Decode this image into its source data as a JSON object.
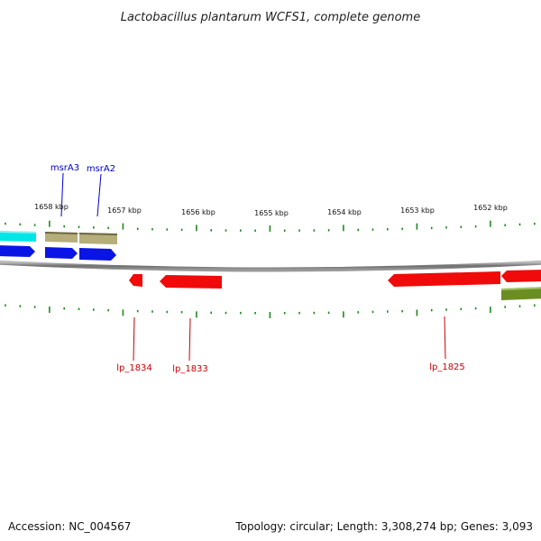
{
  "title": "Lactobacillus plantarum WCFS1, complete genome",
  "footer": {
    "accession": "Accession: NC_004567",
    "summary": "Topology: circular; Length: 3,308,274 bp; Genes: 3,093"
  },
  "scale_labels": [
    "1658 kbp",
    "1657 kbp",
    "1656 kbp",
    "1655 kbp",
    "1654 kbp",
    "1653 kbp",
    "1652 kbp"
  ],
  "colors": {
    "backbone": "#8a8a8a",
    "ticks": "#1f8a1f",
    "forward_label": "#0000cc",
    "reverse_label": "#cc0000",
    "cyan": "#00e5e5",
    "khaki": "#b5ad7a",
    "blue": "#0a14e6",
    "red": "#f00a0a",
    "olive": "#6b8e23"
  },
  "gene_labels": [
    {
      "text": "msrA3",
      "color": "#0000cc"
    },
    {
      "text": "msrA2",
      "color": "#0000cc"
    },
    {
      "text": "lp_1834",
      "color": "#cc0000"
    },
    {
      "text": "lp_1833",
      "color": "#cc0000"
    },
    {
      "text": "lp_1825",
      "color": "#cc0000"
    }
  ]
}
